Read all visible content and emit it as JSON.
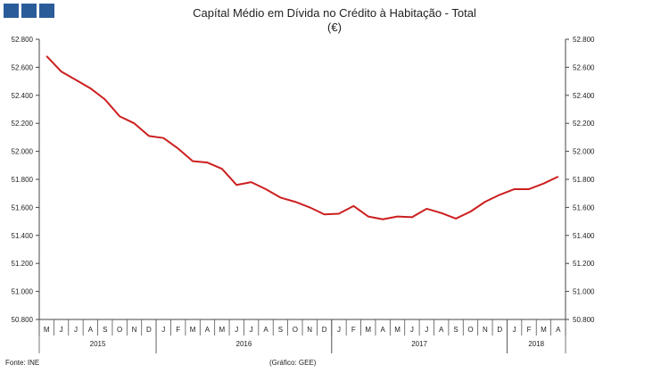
{
  "header": {
    "logo_color": "#2b5c9a",
    "title": "Capítal Médio em Dívida no Crédito à Habitação - Total",
    "subtitle": "(€)"
  },
  "footer": {
    "source": "Fonte: INE",
    "credit": "(Gráfico: GEE)"
  },
  "chart_data": {
    "type": "line",
    "title": "Capítal Médio em Dívida no Crédito à Habitação - Total",
    "subtitle": "(€)",
    "line_color": "#cc1f1f",
    "ylim": [
      50800,
      52800
    ],
    "yticks": [
      "52.800",
      "52.600",
      "52.400",
      "52.200",
      "52.000",
      "51.800",
      "51.600",
      "51.400",
      "51.200",
      "51.000",
      "50.800"
    ],
    "grid": false,
    "legend": "none",
    "categories": [
      "M",
      "J",
      "J",
      "A",
      "S",
      "O",
      "N",
      "D",
      "J",
      "F",
      "M",
      "A",
      "M",
      "J",
      "J",
      "A",
      "S",
      "O",
      "N",
      "D",
      "J",
      "F",
      "M",
      "A",
      "M",
      "J",
      "J",
      "A",
      "S",
      "O",
      "N",
      "D",
      "J",
      "F",
      "M",
      "A"
    ],
    "years": [
      {
        "label": "2015",
        "start": 0,
        "end": 8
      },
      {
        "label": "2016",
        "start": 8,
        "end": 20
      },
      {
        "label": "2017",
        "start": 20,
        "end": 32
      },
      {
        "label": "2018",
        "start": 32,
        "end": 36
      }
    ],
    "series": [
      {
        "values": [
          52680,
          52570,
          52510,
          52450,
          52370,
          52250,
          52200,
          52110,
          52095,
          52020,
          51930,
          51920,
          51875,
          51760,
          51780,
          51730,
          51670,
          51640,
          51600,
          51550,
          51555,
          51610,
          51535,
          51515,
          51535,
          51530,
          51590,
          51560,
          51520,
          51570,
          51640,
          51690,
          51730,
          51730,
          51770,
          51820
        ]
      }
    ]
  }
}
